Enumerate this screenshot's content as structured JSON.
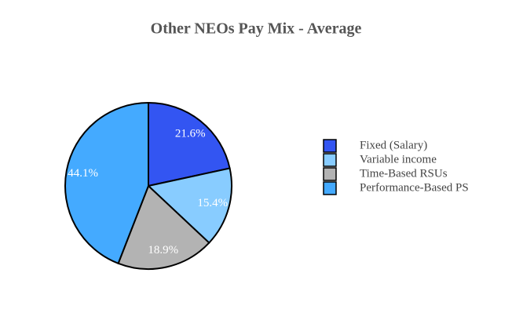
{
  "chart_data": {
    "type": "pie",
    "title": "Other NEOs Pay Mix - Average",
    "categories": [
      "Fixed (Salary)",
      "Variable income",
      "Time-Based RSUs",
      "Performance-Based PS"
    ],
    "values": [
      21.6,
      15.4,
      18.9,
      44.1
    ],
    "value_labels": [
      "21.6%",
      "15.4%",
      "18.9%",
      "44.1%"
    ],
    "colors": [
      "#3355f2",
      "#88ccff",
      "#b3b3b3",
      "#44aaff"
    ],
    "legend": "right"
  }
}
